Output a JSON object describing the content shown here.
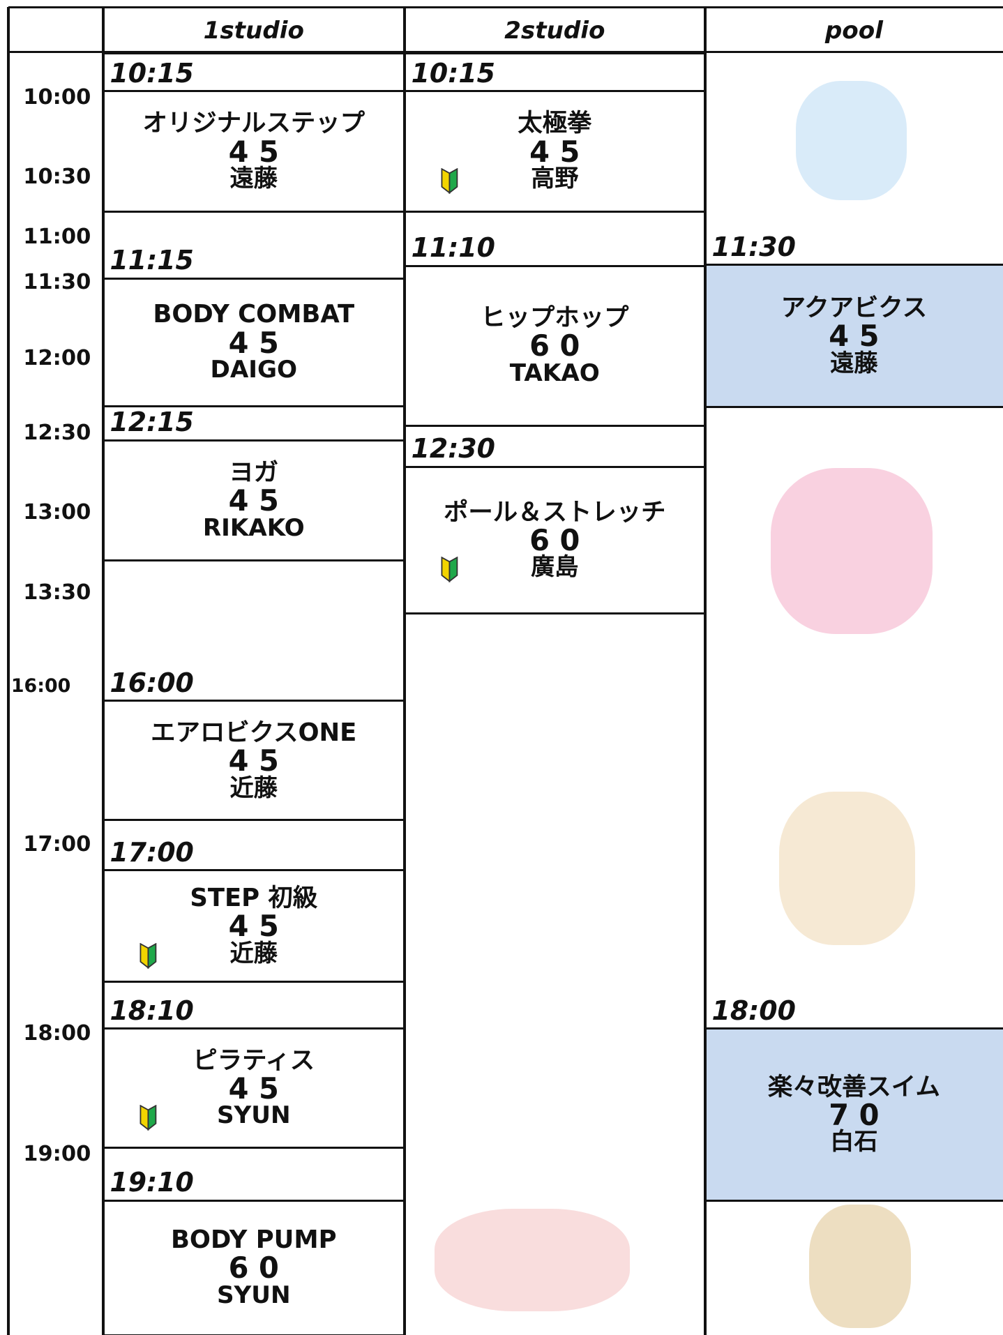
{
  "header": {
    "columns": [
      "1studio",
      "2studio",
      "pool"
    ]
  },
  "time_labels": [
    "10:00",
    "10:30",
    "11:00",
    "11:30",
    "12:00",
    "12:30",
    "13:00",
    "13:30",
    "16:00",
    "17:00",
    "18:00",
    "19:00"
  ],
  "studios": [
    {
      "classes": [
        {
          "start": "10:15",
          "name": "オリジナルステップ",
          "duration": 45,
          "instructor": "遠藤",
          "beginner": false
        },
        {
          "start": "11:15",
          "name": "BODY COMBAT",
          "duration": 45,
          "instructor": "DAIGO",
          "beginner": false
        },
        {
          "start": "12:15",
          "name": "ヨガ",
          "duration": 45,
          "instructor": "RIKAKO",
          "beginner": false
        },
        {
          "start": "16:00",
          "name": "エアロビクスONE",
          "duration": 45,
          "instructor": "近藤",
          "beginner": false
        },
        {
          "start": "17:00",
          "name": "STEP 初級",
          "duration": 45,
          "instructor": "近藤",
          "beginner": true
        },
        {
          "start": "18:10",
          "name": "ピラティス",
          "duration": 45,
          "instructor": "SYUN",
          "beginner": true
        },
        {
          "start": "19:10",
          "name": "BODY PUMP",
          "duration": 60,
          "instructor": "SYUN",
          "beginner": false
        }
      ]
    },
    {
      "classes": [
        {
          "start": "10:15",
          "name": "太極拳",
          "duration": 45,
          "instructor": "高野",
          "beginner": true
        },
        {
          "start": "11:10",
          "name": "ヒップホップ",
          "duration": 60,
          "instructor": "TAKAO",
          "beginner": false
        },
        {
          "start": "12:30",
          "name": "ポール＆ストレッチ",
          "duration": 60,
          "instructor": "廣島",
          "beginner": true
        }
      ]
    },
    {
      "classes": [
        {
          "start": "11:30",
          "name": "アクアビクス",
          "duration": 45,
          "instructor": "遠藤",
          "beginner": false
        },
        {
          "start": "18:00",
          "name": "楽々改善スイム",
          "duration": 70,
          "instructor": "白石",
          "beginner": false
        }
      ]
    }
  ]
}
